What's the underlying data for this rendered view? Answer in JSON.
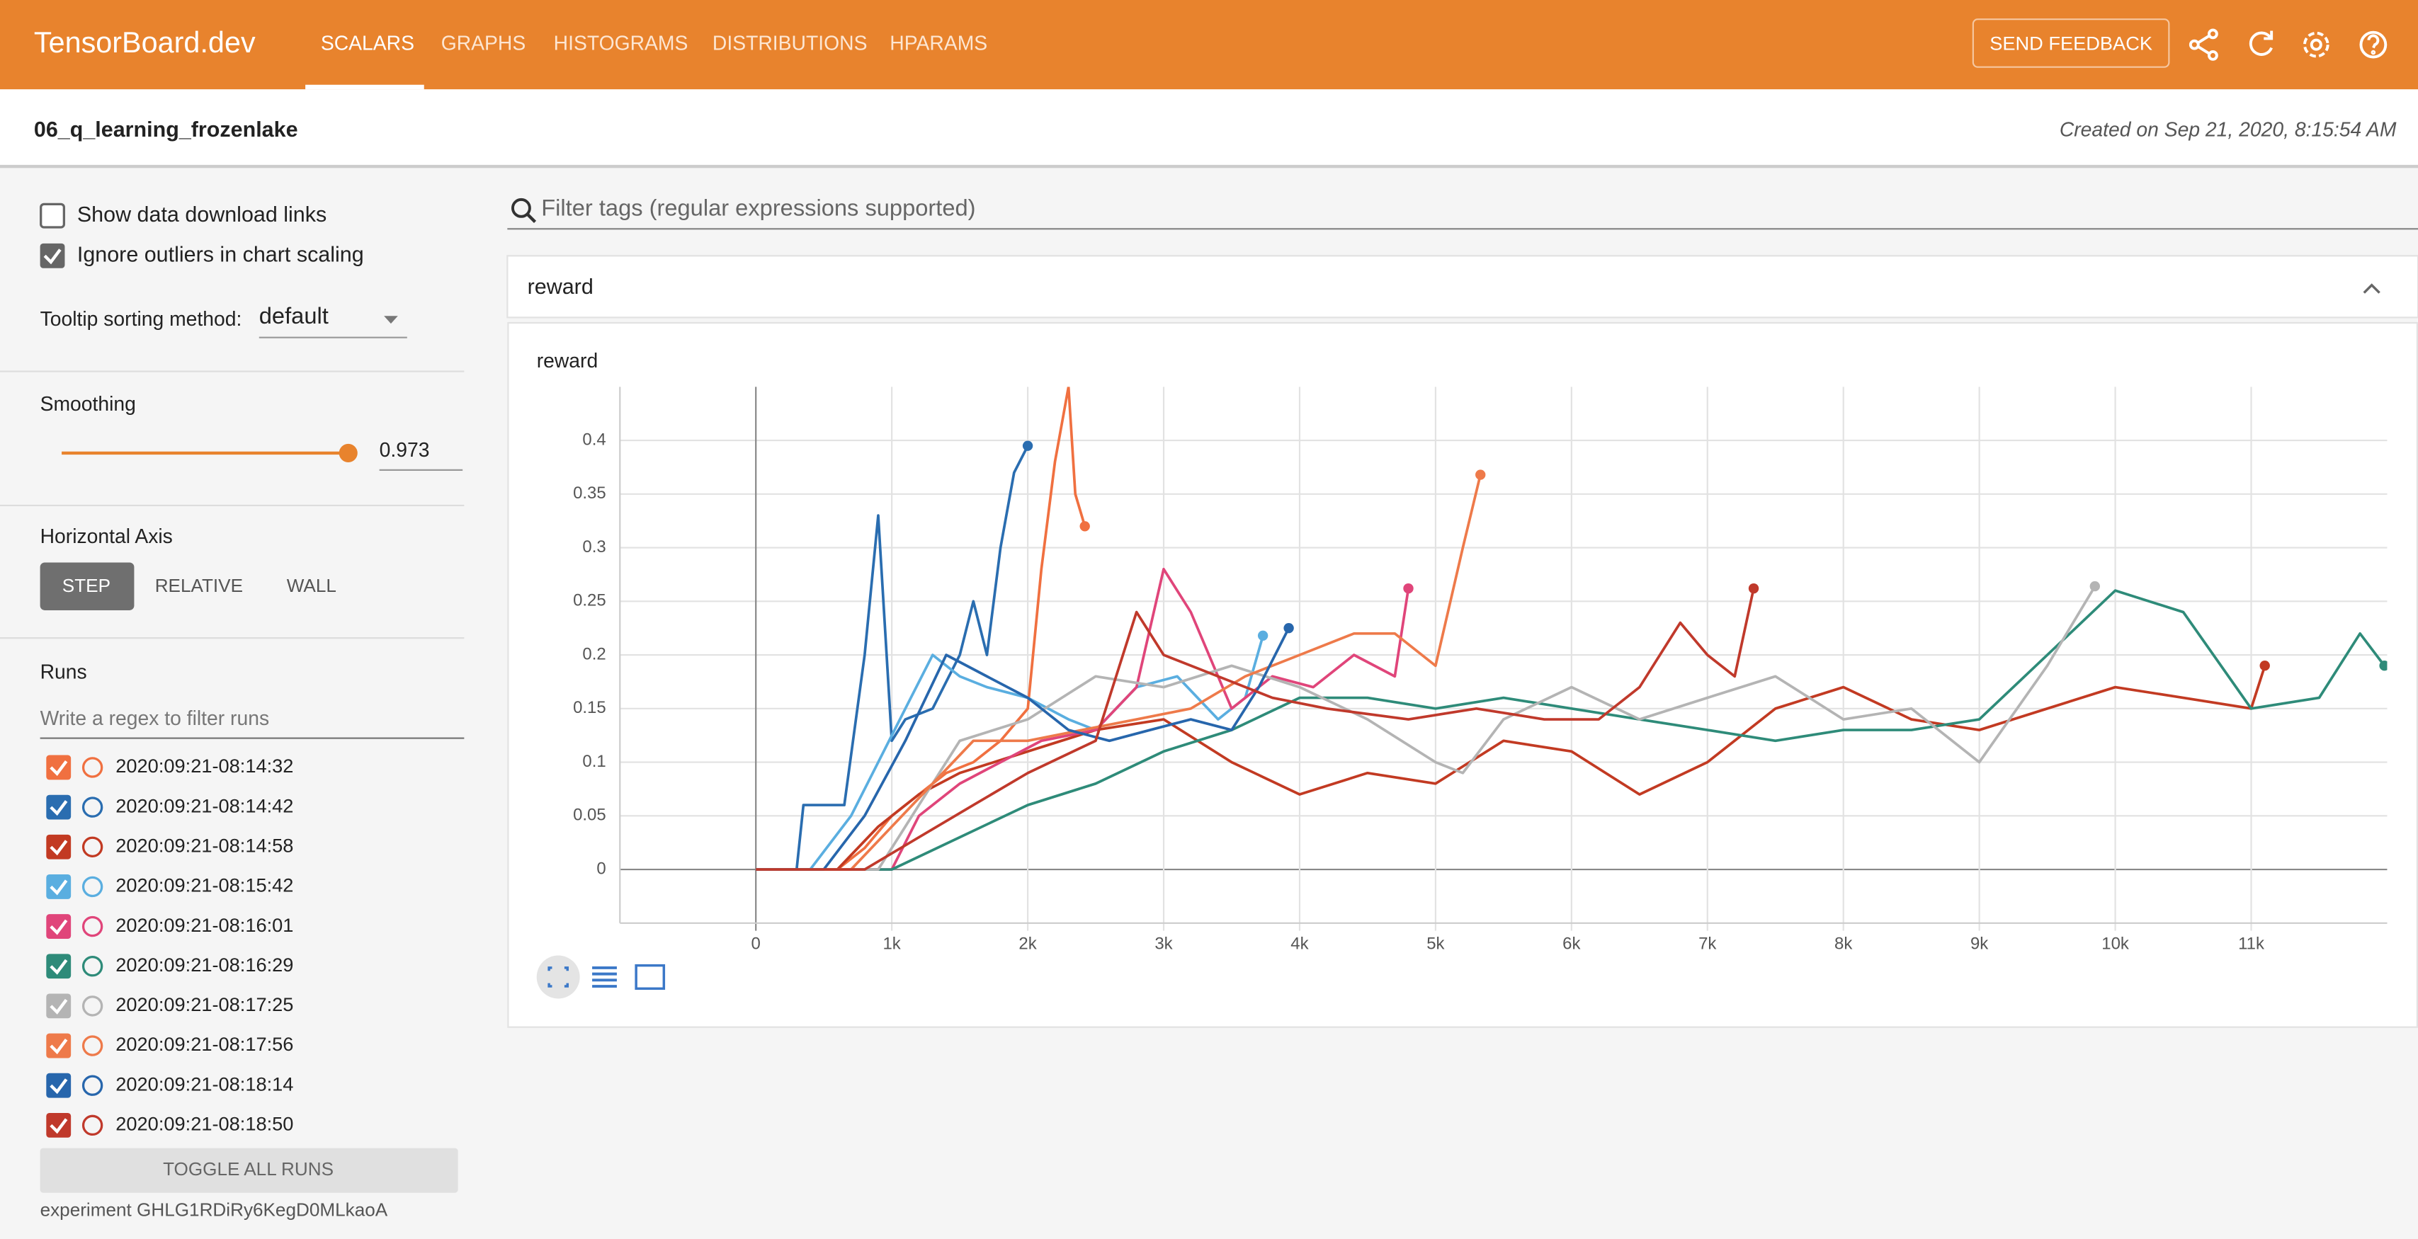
{
  "header": {
    "brand": "TensorBoard.dev",
    "tabs": [
      "SCALARS",
      "GRAPHS",
      "HISTOGRAMS",
      "DISTRIBUTIONS",
      "HPARAMS"
    ],
    "feedback": "SEND FEEDBACK"
  },
  "experiment": {
    "name": "06_q_learning_frozenlake",
    "created": "Created on Sep 21, 2020, 8:15:54 AM"
  },
  "sidebar": {
    "show_download": "Show data download links",
    "ignore_outliers": "Ignore outliers in chart scaling",
    "tooltip_label": "Tooltip sorting method:",
    "tooltip_value": "default",
    "smoothing_label": "Smoothing",
    "smoothing_value": 0.973,
    "horizontal_axis": "Horizontal Axis",
    "axis_options": [
      "STEP",
      "RELATIVE",
      "WALL"
    ],
    "runs_label": "Runs",
    "runs_filter": "Write a regex to filter runs",
    "toggle_all": "TOGGLE ALL RUNS",
    "experiment_id": "experiment GHLG1RDiRy6KegD0MLkaoA"
  },
  "filter_placeholder": "Filter tags (regular expressions supported)",
  "card": "reward",
  "chart_data": {
    "type": "line",
    "title": "reward",
    "xlim": [
      -1000,
      12000
    ],
    "ylim": [
      -0.05,
      0.45
    ],
    "xticks": [
      0,
      {
        "value": 1000,
        "label": "1k"
      },
      {
        "value": 2000,
        "label": "2k"
      },
      {
        "value": 3000,
        "label": "3k"
      },
      {
        "value": 4000,
        "label": "4k"
      },
      {
        "value": 5000,
        "label": "5k"
      },
      {
        "value": 6000,
        "label": "6k"
      },
      {
        "value": 7000,
        "label": "7k"
      },
      {
        "value": 8000,
        "label": "8k"
      },
      {
        "value": 9000,
        "label": "9k"
      },
      {
        "value": 10000,
        "label": "10k"
      },
      {
        "value": 11000,
        "label": "11k"
      }
    ],
    "yticks": [
      0,
      0.05,
      0.1,
      0.15,
      0.2,
      0.25,
      0.3,
      0.35,
      0.4
    ],
    "grid": true,
    "series": [
      {
        "name": "2020:09:21-08:14:32",
        "color": "#f07040",
        "x": [
          0,
          600,
          800,
          1000,
          1200,
          1400,
          1600,
          1800,
          2000,
          2100,
          2200,
          2300,
          2350,
          2420
        ],
        "values": [
          0,
          0,
          0.02,
          0.05,
          0.07,
          0.09,
          0.1,
          0.12,
          0.15,
          0.28,
          0.38,
          0.45,
          0.35,
          0.32
        ]
      },
      {
        "name": "2020:09:21-08:14:42",
        "color": "#2a6db0",
        "x": [
          0,
          300,
          350,
          500,
          650,
          800,
          900,
          1000,
          1100,
          1300,
          1500,
          1600,
          1700,
          1800,
          1900,
          2000
        ],
        "values": [
          0,
          0,
          0.06,
          0.06,
          0.06,
          0.2,
          0.33,
          0.12,
          0.14,
          0.15,
          0.2,
          0.25,
          0.2,
          0.3,
          0.37,
          0.395
        ]
      },
      {
        "name": "2020:09:21-08:14:58",
        "color": "#c23a22",
        "x": [
          0,
          600,
          900,
          1200,
          1500,
          2000,
          2500,
          3000,
          3500,
          4000,
          4500,
          5000,
          5500,
          6000,
          6500,
          7000,
          7500,
          8000,
          8500,
          9000,
          9500,
          10000,
          10500,
          11000,
          11100
        ],
        "values": [
          0,
          0,
          0.04,
          0.07,
          0.09,
          0.11,
          0.13,
          0.14,
          0.1,
          0.07,
          0.09,
          0.08,
          0.12,
          0.11,
          0.07,
          0.1,
          0.15,
          0.17,
          0.14,
          0.13,
          0.15,
          0.17,
          0.16,
          0.15,
          0.19
        ]
      },
      {
        "name": "2020:09:21-08:15:42",
        "color": "#5aaee0",
        "x": [
          0,
          400,
          700,
          900,
          1100,
          1300,
          1500,
          1700,
          2000,
          2300,
          2500,
          2800,
          3100,
          3400,
          3600,
          3730
        ],
        "values": [
          0,
          0,
          0.05,
          0.1,
          0.15,
          0.2,
          0.18,
          0.17,
          0.16,
          0.14,
          0.13,
          0.17,
          0.18,
          0.14,
          0.16,
          0.218
        ]
      },
      {
        "name": "2020:09:21-08:16:01",
        "color": "#e0457a",
        "x": [
          0,
          1000,
          1200,
          1500,
          1800,
          2100,
          2500,
          2800,
          3000,
          3200,
          3500,
          3800,
          4100,
          4400,
          4700,
          4800
        ],
        "values": [
          0,
          0,
          0.05,
          0.08,
          0.1,
          0.12,
          0.13,
          0.17,
          0.28,
          0.24,
          0.15,
          0.18,
          0.17,
          0.2,
          0.18,
          0.262
        ]
      },
      {
        "name": "2020:09:21-08:16:29",
        "color": "#2e8b79",
        "x": [
          0,
          1000,
          1500,
          2000,
          2500,
          3000,
          3500,
          4000,
          4500,
          5000,
          5500,
          6000,
          6500,
          7000,
          7500,
          8000,
          8500,
          9000,
          9500,
          10000,
          10500,
          11000,
          11500,
          11800,
          11980
        ],
        "values": [
          0,
          0,
          0.03,
          0.06,
          0.08,
          0.11,
          0.13,
          0.16,
          0.16,
          0.15,
          0.16,
          0.15,
          0.14,
          0.13,
          0.12,
          0.13,
          0.13,
          0.14,
          0.2,
          0.26,
          0.24,
          0.15,
          0.16,
          0.22,
          0.19
        ]
      },
      {
        "name": "2020:09:21-08:17:25",
        "color": "#b4b4b4",
        "x": [
          0,
          900,
          1200,
          1500,
          2000,
          2500,
          3000,
          3500,
          4000,
          4500,
          5000,
          5200,
          5500,
          6000,
          6500,
          7000,
          7500,
          8000,
          8500,
          9000,
          9500,
          9850
        ],
        "values": [
          0,
          0,
          0.06,
          0.12,
          0.14,
          0.18,
          0.17,
          0.19,
          0.17,
          0.14,
          0.1,
          0.09,
          0.14,
          0.17,
          0.14,
          0.16,
          0.18,
          0.14,
          0.15,
          0.1,
          0.19,
          0.264
        ]
      },
      {
        "name": "2020:09:21-08:17:56",
        "color": "#ee7a4a",
        "x": [
          0,
          700,
          1000,
          1300,
          1600,
          2000,
          2400,
          2800,
          3200,
          3600,
          4000,
          4400,
          4700,
          5000,
          5200,
          5330
        ],
        "values": [
          0,
          0,
          0.04,
          0.08,
          0.12,
          0.12,
          0.13,
          0.14,
          0.15,
          0.18,
          0.2,
          0.22,
          0.22,
          0.19,
          0.3,
          0.368
        ]
      },
      {
        "name": "2020:09:21-08:18:14",
        "color": "#2766ac",
        "x": [
          0,
          500,
          800,
          1100,
          1400,
          1700,
          2000,
          2300,
          2600,
          2900,
          3200,
          3500,
          3700,
          3920
        ],
        "values": [
          0,
          0,
          0.05,
          0.12,
          0.2,
          0.18,
          0.16,
          0.13,
          0.12,
          0.13,
          0.14,
          0.13,
          0.17,
          0.225
        ]
      },
      {
        "name": "2020:09:21-08:18:50",
        "color": "#c0392b",
        "x": [
          0,
          800,
          1200,
          1600,
          2000,
          2500,
          2800,
          3000,
          3400,
          3800,
          4200,
          4800,
          5300,
          5800,
          6200,
          6500,
          6800,
          7000,
          7200,
          7340
        ],
        "values": [
          0,
          0,
          0.03,
          0.06,
          0.09,
          0.12,
          0.24,
          0.2,
          0.18,
          0.16,
          0.15,
          0.14,
          0.15,
          0.14,
          0.14,
          0.17,
          0.23,
          0.2,
          0.18,
          0.262
        ]
      }
    ]
  }
}
